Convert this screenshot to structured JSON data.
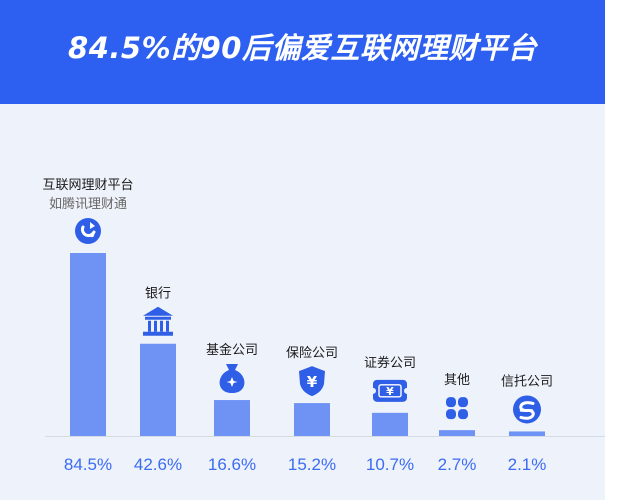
{
  "header": {
    "title": "84.5%的90后偏爱互联网理财平台"
  },
  "colors": {
    "header_bg": "#2d5ff0",
    "bar": "#6f93f5",
    "icon": "#2f5fe6",
    "value_text": "#3b6cf2",
    "panel_bg": "#eef2fa"
  },
  "chart_data": {
    "type": "bar",
    "title": "84.5%的90后偏爱互联网理财平台",
    "categories": [
      "互联网理财平台",
      "银行",
      "基金公司",
      "保险公司",
      "证券公司",
      "其他",
      "信托公司"
    ],
    "subtitles": [
      "如腾讯理财通",
      "",
      "",
      "",
      "",
      "",
      ""
    ],
    "icons": [
      "lct-logo-icon",
      "bank-icon",
      "money-bag-icon",
      "yen-shield-icon",
      "yen-ticket-icon",
      "clover-icon",
      "trust-logo-icon"
    ],
    "values": [
      84.5,
      42.6,
      16.6,
      15.2,
      10.7,
      2.7,
      2.1
    ],
    "value_labels": [
      "84.5%",
      "42.6%",
      "16.6%",
      "15.2%",
      "10.7%",
      "2.7%",
      "2.1%"
    ],
    "ylim": [
      0,
      100
    ],
    "grid": false,
    "legend": "none"
  }
}
